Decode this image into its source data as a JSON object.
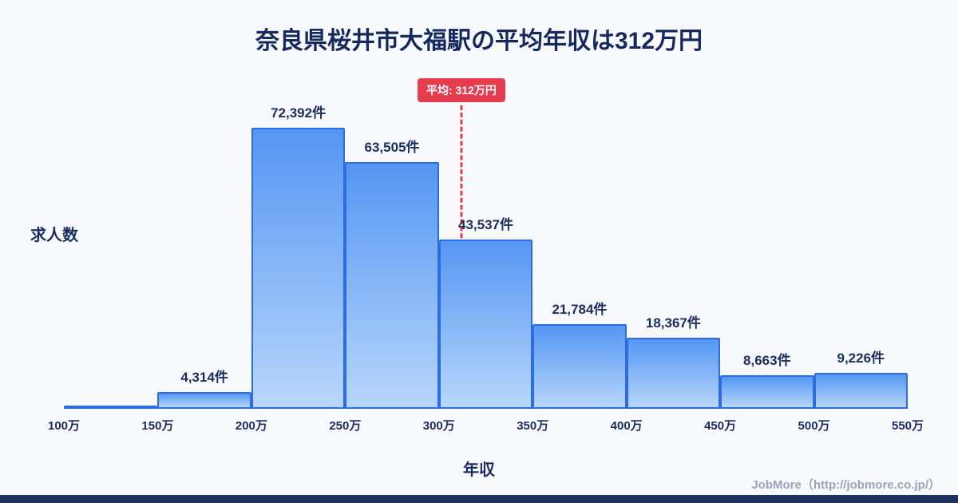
{
  "page": {
    "background_color": "#f7f9fd",
    "footer_text": "JobMore（http://jobmore.co.jp/）",
    "bottom_bar_color": "#1d3261",
    "text_color": "#1b2d5e"
  },
  "chart_data": {
    "type": "bar",
    "title": "奈良県桜井市大福駅の平均年収は312万円",
    "xlabel": "年収",
    "ylabel": "求人数",
    "bin_edges": [
      "100万",
      "150万",
      "200万",
      "250万",
      "300万",
      "350万",
      "400万",
      "450万",
      "500万",
      "550万"
    ],
    "values": [
      0,
      4314,
      72392,
      63505,
      43537,
      21784,
      18367,
      8663,
      9226
    ],
    "labels": [
      "",
      "4,314件",
      "72,392件",
      "63,505件",
      "43,537件",
      "21,784件",
      "18,367件",
      "8,663件",
      "9,226件"
    ],
    "unit": "件",
    "average_line": {
      "label": "平均: 312万円",
      "x_value": 312,
      "x_min": 100,
      "x_max": 550
    },
    "grid": false,
    "legend": false,
    "colors": {
      "bar_fill_top": "#5496f3",
      "bar_fill_bottom": "#b8d6fb",
      "bar_border": "#2c6ee2",
      "average_color": "#e63c4f"
    }
  }
}
